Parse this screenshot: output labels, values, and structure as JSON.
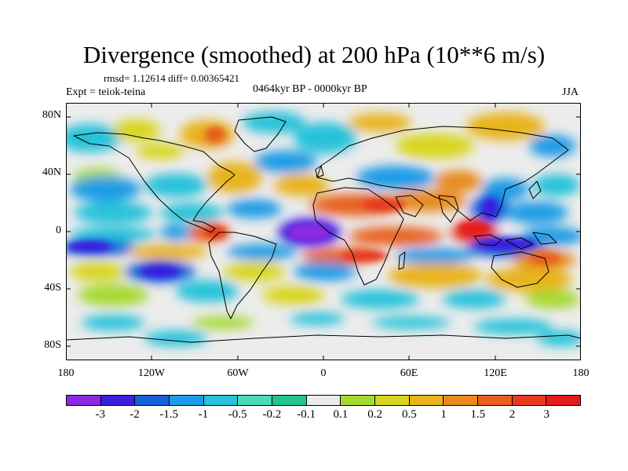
{
  "plot": {
    "title": "Divergence (smoothed) at 200 hPa (10**6 m/s)",
    "stats": "rmsd= 1.12614 diff= 0.00365421",
    "experiment": "Expt = teiok-teina",
    "period": "0464kyr BP - 0000kyr BP",
    "season": "JJA"
  },
  "axes": {
    "y_ticks": [
      "80N",
      "40N",
      "0",
      "40S",
      "80S"
    ],
    "x_ticks": [
      "180",
      "120W",
      "60W",
      "0",
      "60E",
      "120E",
      "180"
    ]
  },
  "colorbar": {
    "colors": [
      "#8a2be2",
      "#3b1fe0",
      "#1760d9",
      "#1e9be6",
      "#25c2da",
      "#4adbb8",
      "#20c490",
      "#ececec",
      "#a6d930",
      "#d8d61e",
      "#e8b41c",
      "#e88a1c",
      "#e8601c",
      "#e83a20",
      "#e51a1a"
    ],
    "labels": [
      "-3",
      "-2",
      "-1.5",
      "-1",
      "-0.5",
      "-0.2",
      "-0.1",
      "0.1",
      "0.2",
      "0.5",
      "1",
      "1.5",
      "2",
      "3"
    ]
  }
}
